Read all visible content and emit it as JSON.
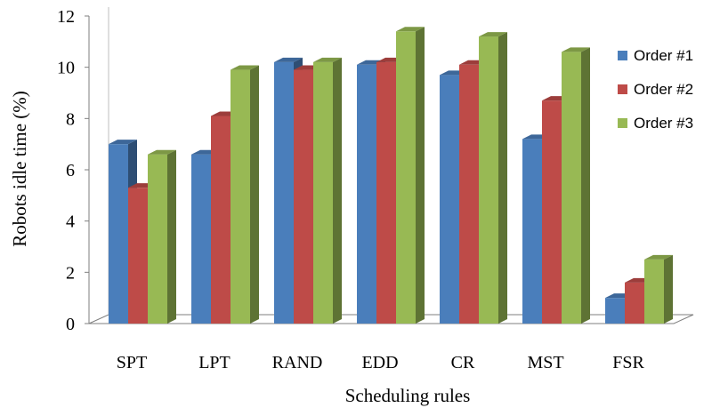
{
  "chart_data": {
    "type": "bar",
    "title": "",
    "xlabel": "Scheduling rules",
    "ylabel": "Robots idle time (%)",
    "ylim": [
      0,
      12
    ],
    "yticks": [
      0,
      2,
      4,
      6,
      8,
      10,
      12
    ],
    "grid": false,
    "legend_position": "right",
    "categories": [
      "SPT",
      "LPT",
      "RAND",
      "EDD",
      "CR",
      "MST",
      "FSR"
    ],
    "series": [
      {
        "name": "Order #1",
        "color": "#4a7ebb",
        "values": [
          7.0,
          6.6,
          10.2,
          10.1,
          9.7,
          7.2,
          1.0
        ]
      },
      {
        "name": "Order #2",
        "color": "#be4b48",
        "values": [
          5.3,
          8.1,
          9.9,
          10.2,
          10.1,
          8.7,
          1.6
        ]
      },
      {
        "name": "Order #3",
        "color": "#98b954",
        "values": [
          6.6,
          9.9,
          10.2,
          11.4,
          11.2,
          10.6,
          2.5
        ]
      }
    ]
  }
}
